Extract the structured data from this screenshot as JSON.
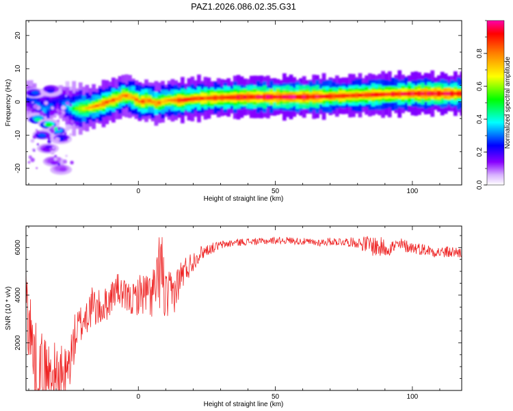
{
  "title": "PAZ1.2026.086.02.35.G31",
  "chart_data": [
    {
      "type": "heatmap",
      "title": "PAZ1.2026.086.02.35.G31",
      "xlabel": "Height of straight line (km)",
      "ylabel": "Frequency (Hz)",
      "xlim": [
        -41,
        118
      ],
      "ylim": [
        -25,
        24.5
      ],
      "xticks": [
        0,
        50,
        100
      ],
      "yticks": [
        -20,
        -10,
        0,
        10,
        20
      ],
      "colorbar": {
        "label": "Normalized spectral amplitude",
        "range": [
          0,
          1
        ],
        "ticks": [
          0.0,
          0.2,
          0.4,
          0.6,
          0.8
        ],
        "colormap": "rainbow",
        "colors": [
          "#ffffff",
          "#d9b3ff",
          "#8800ff",
          "#0000ff",
          "#00ffff",
          "#00ff00",
          "#ffff00",
          "#ff8000",
          "#ff0000",
          "#ff00aa"
        ]
      },
      "ridge": [
        {
          "x": -40,
          "f": 1.0,
          "amp": 0.25
        },
        {
          "x": -35,
          "f": -2.5,
          "amp": 0.35
        },
        {
          "x": -30,
          "f": 0.5,
          "amp": 0.2
        },
        {
          "x": -25,
          "f": -2.0,
          "amp": 0.45
        },
        {
          "x": -20,
          "f": -2.0,
          "amp": 0.7
        },
        {
          "x": -15,
          "f": -1.0,
          "amp": 0.8
        },
        {
          "x": -12,
          "f": 0.0,
          "amp": 0.85
        },
        {
          "x": -8,
          "f": 1.0,
          "amp": 0.8
        },
        {
          "x": -6,
          "f": 2.0,
          "amp": 0.8
        },
        {
          "x": -3,
          "f": 1.5,
          "amp": 0.75
        },
        {
          "x": 0,
          "f": 0.0,
          "amp": 0.85
        },
        {
          "x": 3,
          "f": 0.5,
          "amp": 0.8
        },
        {
          "x": 6,
          "f": -0.5,
          "amp": 0.8
        },
        {
          "x": 10,
          "f": 0.5,
          "amp": 0.75
        },
        {
          "x": 15,
          "f": 0.5,
          "amp": 0.9
        },
        {
          "x": 20,
          "f": 1.0,
          "amp": 0.85
        },
        {
          "x": 30,
          "f": 1.3,
          "amp": 0.88
        },
        {
          "x": 40,
          "f": 1.5,
          "amp": 0.92
        },
        {
          "x": 50,
          "f": 1.5,
          "amp": 0.95
        },
        {
          "x": 60,
          "f": 1.5,
          "amp": 0.95
        },
        {
          "x": 70,
          "f": 1.7,
          "amp": 0.9
        },
        {
          "x": 80,
          "f": 2.0,
          "amp": 0.88
        },
        {
          "x": 90,
          "f": 2.3,
          "amp": 0.9
        },
        {
          "x": 100,
          "f": 2.5,
          "amp": 0.92
        },
        {
          "x": 110,
          "f": 2.5,
          "amp": 0.95
        },
        {
          "x": 118,
          "f": 2.5,
          "amp": 0.9
        }
      ],
      "scatter_blobs": [
        {
          "x": -37,
          "f": -5.0,
          "amp": 0.5
        },
        {
          "x": -33,
          "f": -7.0,
          "amp": 0.6
        },
        {
          "x": -30,
          "f": -8.5,
          "amp": 0.5
        },
        {
          "x": -35,
          "f": -10.0,
          "amp": 0.3
        },
        {
          "x": -28,
          "f": -11.0,
          "amp": 0.25
        },
        {
          "x": -33,
          "f": -14.0,
          "amp": 0.15
        },
        {
          "x": -31,
          "f": -18.0,
          "amp": 0.1
        },
        {
          "x": -28,
          "f": -20.0,
          "amp": 0.08
        },
        {
          "x": -38,
          "f": 2.5,
          "amp": 0.3
        },
        {
          "x": -32,
          "f": 3.5,
          "amp": 0.2
        }
      ]
    },
    {
      "type": "line",
      "xlabel": "Height of straight line (km)",
      "ylabel": "SNR (10 * v/v)",
      "xlim": [
        -41,
        118
      ],
      "ylim": [
        0,
        6900
      ],
      "xticks": [
        0,
        50,
        100
      ],
      "yticks": [
        2000,
        4000,
        6000
      ],
      "series": [
        {
          "name": "SNR",
          "color": "#ee2222",
          "x": [
            -41,
            -38,
            -35,
            -32,
            -29,
            -26,
            -23,
            -20,
            -17,
            -14,
            -11,
            -8,
            -5,
            -2,
            1,
            4,
            7,
            8,
            10,
            13,
            16,
            19,
            22,
            25,
            30,
            35,
            40,
            45,
            50,
            55,
            60,
            65,
            70,
            75,
            80,
            85,
            88,
            92,
            96,
            100,
            105,
            110,
            115,
            118
          ],
          "y": [
            4000,
            1200,
            800,
            600,
            500,
            700,
            2300,
            3000,
            3500,
            3400,
            3700,
            4300,
            3900,
            3800,
            4100,
            4000,
            4300,
            5500,
            3800,
            4100,
            4900,
            5300,
            5700,
            5900,
            6100,
            6200,
            6250,
            6250,
            6300,
            6300,
            6250,
            6200,
            6250,
            6250,
            6200,
            6100,
            6000,
            6000,
            6100,
            6000,
            5900,
            5800,
            5800,
            5800
          ],
          "noise_amplitude": [
            1800,
            1800,
            1700,
            1600,
            1400,
            1200,
            1000,
            900,
            900,
            800,
            700,
            700,
            700,
            700,
            900,
            1000,
            1400,
            2000,
            1200,
            900,
            700,
            500,
            350,
            250,
            180,
            160,
            150,
            150,
            150,
            150,
            150,
            160,
            170,
            180,
            220,
            450,
            450,
            350,
            300,
            250,
            250,
            250,
            250,
            250
          ]
        }
      ]
    }
  ]
}
